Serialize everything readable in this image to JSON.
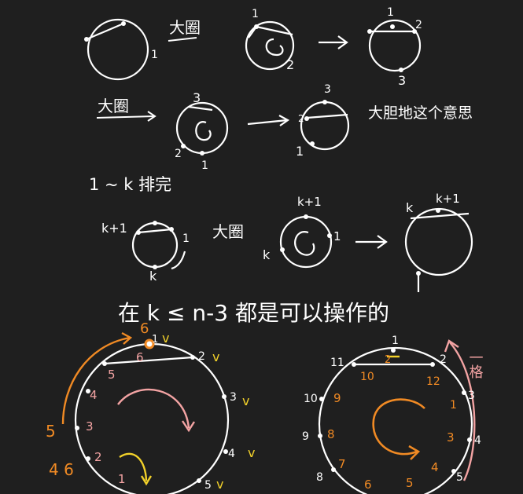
{
  "colors": {
    "background": "#1f1f1f",
    "ink": "#ffffff",
    "orange": "#f08a24",
    "pink": "#f3a3a3",
    "yellow": "#f2d12a"
  },
  "row1": {
    "circle_a_label_1": "1",
    "note_big_circle": "大圈",
    "circle_b_label_1": "1",
    "circle_b_label_2": "2",
    "circle_c_label_1": "1",
    "circle_c_label_2": "2",
    "circle_c_label_3": "3"
  },
  "row2": {
    "note_big_circle": "大圈",
    "circle_d_label_3": "3",
    "circle_d_label_2": "2",
    "circle_d_label_1": "1",
    "circle_e_label_3": "3",
    "circle_e_label_2": "2",
    "circle_e_label_1": "1",
    "note_continue": "大胆地这个意思"
  },
  "row3": {
    "note_sorted": "1 ~ k 排完"
  },
  "row4": {
    "circle_f_label_top": "k+1",
    "circle_f_label_1": "1",
    "circle_f_label_k": "k",
    "note_big_circle": "大圈",
    "circle_g_label_top": "k+1",
    "circle_g_label_1": "1",
    "circle_g_label_k": "k",
    "circle_h_label_k": "k",
    "circle_h_label_top": "k+1"
  },
  "condition": {
    "text": "在 k ≤ n-3 都是可以操作的"
  },
  "left_circle": {
    "outer_labels": [
      "1",
      "2",
      "3",
      "4",
      "5"
    ],
    "check_marks": [
      "v",
      "v",
      "v",
      "v",
      "v",
      "v"
    ],
    "inner_labels": [
      "6",
      "5",
      "4",
      "3",
      "2",
      "1"
    ],
    "top_orange_6": "6",
    "side_5": "5",
    "side_46": "4 6"
  },
  "right_circle": {
    "outer_labels": [
      "1",
      "2",
      "3",
      "4",
      "5",
      "8",
      "9",
      "10",
      "11"
    ],
    "inner_labels": [
      "2",
      "10",
      "12",
      "1",
      "3",
      "4",
      "5",
      "6",
      "7",
      "8",
      "9"
    ],
    "note_one_step": "一格"
  }
}
